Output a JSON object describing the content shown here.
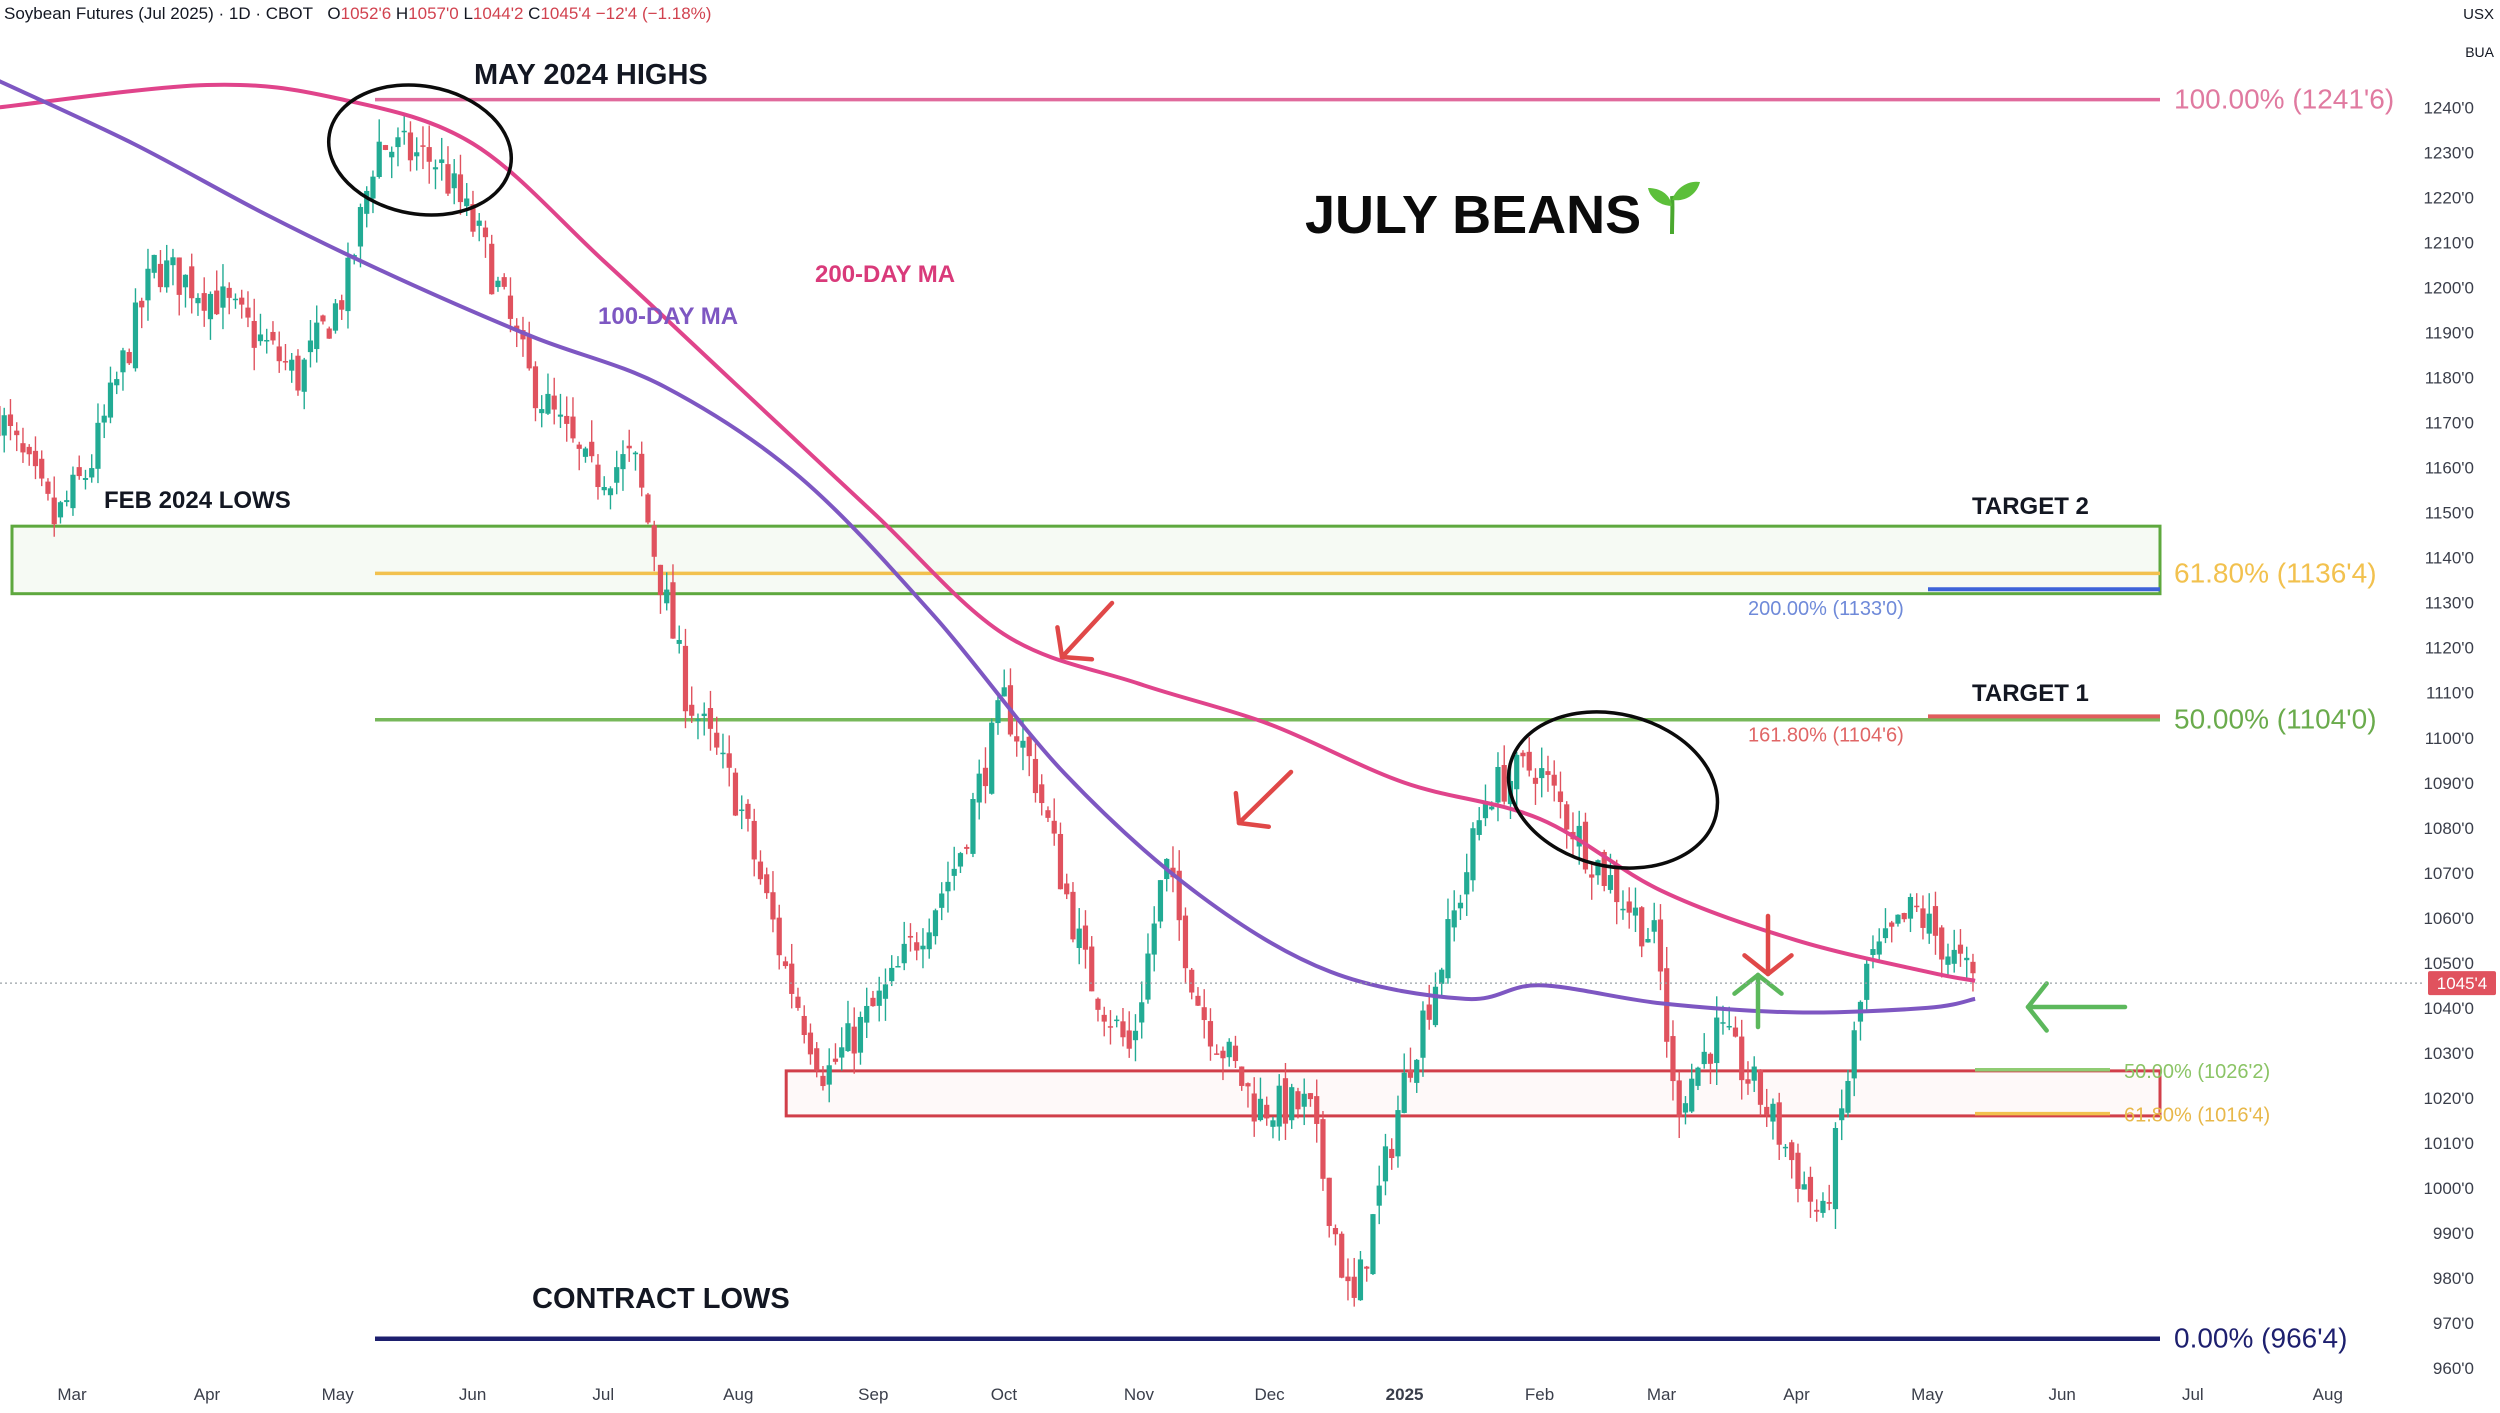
{
  "header": {
    "symbol_line": "Soybean Futures (Jul 2025) · 1D · CBOT",
    "open_label": "O",
    "open": "1052'6",
    "high_label": "H",
    "high": "1057'0",
    "low_label": "L",
    "low": "1044'2",
    "close_label": "C",
    "close": "1045'4",
    "change": "−12'4 (−1.18%)",
    "currency": "USX",
    "unit": "BUA"
  },
  "colors": {
    "up": "#22ab94",
    "down": "#e0525e",
    "ma200": "#e0448b",
    "ma100": "#7e57c2",
    "green_box": "#5ea83e",
    "red_box": "#d13f4a",
    "fib_gold": "#f2c14e",
    "navy": "#1d1f6e",
    "pink_fib": "#e07aa0"
  },
  "chart_data": {
    "type": "candlestick",
    "title": "JULY BEANS",
    "title_icon": "seedling-icon",
    "y_axis": {
      "min": 960,
      "max": 1250,
      "ticks": [
        "960'0",
        "970'0",
        "980'0",
        "990'0",
        "1000'0",
        "1010'0",
        "1020'0",
        "1030'0",
        "1040'0",
        "1050'0",
        "1060'0",
        "1070'0",
        "1080'0",
        "1090'0",
        "1100'0",
        "1110'0",
        "1120'0",
        "1130'0",
        "1140'0",
        "1150'0",
        "1160'0",
        "1170'0",
        "1180'0",
        "1190'0",
        "1200'0",
        "1210'0",
        "1220'0",
        "1230'0",
        "1240'0"
      ],
      "tick_values": [
        960,
        970,
        980,
        990,
        1000,
        1010,
        1020,
        1030,
        1040,
        1050,
        1060,
        1070,
        1080,
        1090,
        1100,
        1110,
        1120,
        1130,
        1140,
        1150,
        1160,
        1170,
        1180,
        1190,
        1200,
        1210,
        1220,
        1230,
        1240
      ],
      "position": "right"
    },
    "x_axis": {
      "months": [
        {
          "label": "Mar",
          "date": "2024-03-01"
        },
        {
          "label": "Apr",
          "date": "2024-04-01"
        },
        {
          "label": "May",
          "date": "2024-05-01"
        },
        {
          "label": "Jun",
          "date": "2024-06-01"
        },
        {
          "label": "Jul",
          "date": "2024-07-01"
        },
        {
          "label": "Aug",
          "date": "2024-08-01"
        },
        {
          "label": "Sep",
          "date": "2024-09-01"
        },
        {
          "label": "Oct",
          "date": "2024-10-01"
        },
        {
          "label": "Nov",
          "date": "2024-11-01"
        },
        {
          "label": "Dec",
          "date": "2024-12-01"
        },
        {
          "label": "2025",
          "date": "2025-01-01"
        },
        {
          "label": "Feb",
          "date": "2025-02-01"
        },
        {
          "label": "Mar",
          "date": "2025-03-01"
        },
        {
          "label": "Apr",
          "date": "2025-04-01"
        },
        {
          "label": "May",
          "date": "2025-05-01"
        },
        {
          "label": "Jun",
          "date": "2025-06-01"
        },
        {
          "label": "Jul",
          "date": "2025-07-01"
        },
        {
          "label": "Aug",
          "date": "2025-08-01"
        }
      ]
    },
    "price_path": [
      [
        "2024-02-13",
        1172
      ],
      [
        "2024-02-26",
        1148
      ],
      [
        "2024-03-05",
        1160
      ],
      [
        "2024-03-20",
        1205
      ],
      [
        "2024-04-03",
        1198
      ],
      [
        "2024-04-22",
        1180
      ],
      [
        "2024-05-03",
        1200
      ],
      [
        "2024-05-10",
        1232
      ],
      [
        "2024-05-24",
        1228
      ],
      [
        "2024-06-03",
        1210
      ],
      [
        "2024-06-14",
        1180
      ],
      [
        "2024-06-28",
        1158
      ],
      [
        "2024-07-08",
        1162
      ],
      [
        "2024-07-20",
        1110
      ],
      [
        "2024-08-01",
        1086
      ],
      [
        "2024-08-12",
        1048
      ],
      [
        "2024-08-21",
        1025
      ],
      [
        "2024-09-05",
        1045
      ],
      [
        "2024-09-20",
        1072
      ],
      [
        "2024-10-01",
        1108
      ],
      [
        "2024-10-08",
        1092
      ],
      [
        "2024-10-20",
        1048
      ],
      [
        "2024-10-30",
        1030
      ],
      [
        "2024-11-07",
        1072
      ],
      [
        "2024-11-15",
        1040
      ],
      [
        "2024-11-28",
        1018
      ],
      [
        "2024-12-10",
        1018
      ],
      [
        "2024-12-20",
        972
      ],
      [
        "2025-01-02",
        1028
      ],
      [
        "2025-01-10",
        1052
      ],
      [
        "2025-01-20",
        1088
      ],
      [
        "2025-01-31",
        1094
      ],
      [
        "2025-02-12",
        1075
      ],
      [
        "2025-02-28",
        1054
      ],
      [
        "2025-03-04",
        1018
      ],
      [
        "2025-03-14",
        1035
      ],
      [
        "2025-03-25",
        1018
      ],
      [
        "2025-04-07",
        992
      ],
      [
        "2025-04-17",
        1048
      ],
      [
        "2025-04-28",
        1062
      ],
      [
        "2025-05-12",
        1045
      ]
    ],
    "last_price": {
      "value": 1045.5,
      "label": "1045'4"
    },
    "series": [
      {
        "name": "200-DAY MA",
        "label": "200-DAY MA",
        "values": [
          [
            "2024-02-13",
            1240
          ],
          [
            "2024-04-01",
            1245
          ],
          [
            "2024-05-01",
            1242
          ],
          [
            "2024-06-01",
            1232
          ],
          [
            "2024-07-01",
            1206
          ],
          [
            "2024-08-01",
            1178
          ],
          [
            "2024-09-01",
            1150
          ],
          [
            "2024-10-01",
            1123
          ],
          [
            "2024-11-01",
            1112
          ],
          [
            "2024-12-01",
            1103
          ],
          [
            "2025-01-01",
            1090
          ],
          [
            "2025-02-01",
            1082
          ],
          [
            "2025-03-01",
            1066
          ],
          [
            "2025-04-01",
            1055
          ],
          [
            "2025-05-01",
            1048
          ],
          [
            "2025-05-12",
            1046
          ]
        ]
      },
      {
        "name": "100-DAY MA",
        "label": "100-DAY MA",
        "values": [
          [
            "2024-02-13",
            1246
          ],
          [
            "2024-03-15",
            1232
          ],
          [
            "2024-04-15",
            1216
          ],
          [
            "2024-05-15",
            1202
          ],
          [
            "2024-06-15",
            1189
          ],
          [
            "2024-07-15",
            1178
          ],
          [
            "2024-08-15",
            1158
          ],
          [
            "2024-09-15",
            1127
          ],
          [
            "2024-10-15",
            1092
          ],
          [
            "2024-11-15",
            1065
          ],
          [
            "2024-12-15",
            1048
          ],
          [
            "2025-01-15",
            1042
          ],
          [
            "2025-02-01",
            1045
          ],
          [
            "2025-03-01",
            1041
          ],
          [
            "2025-04-01",
            1039
          ],
          [
            "2025-05-01",
            1040
          ],
          [
            "2025-05-12",
            1042
          ]
        ]
      }
    ],
    "levels": [
      {
        "id": "fib-100",
        "value": 1241.75,
        "label": "100.00% (1241'6)",
        "start": "2024-05-10"
      },
      {
        "id": "fib-618",
        "value": 1136.5,
        "label": "61.80% (1136'4)",
        "start": "2024-05-10"
      },
      {
        "id": "fib-50",
        "value": 1104.0,
        "label": "50.00% (1104'0)",
        "start": "2024-05-10"
      },
      {
        "id": "fib-0",
        "value": 966.5,
        "label": "0.00% (966'4)",
        "start": "2024-05-10"
      },
      {
        "id": "ext-200",
        "value": 1133.0,
        "label": "200.00% (1133'0)"
      },
      {
        "id": "ext-1618",
        "value": 1104.75,
        "label": "161.80% (1104'6)"
      },
      {
        "id": "ret-50",
        "value": 1026.25,
        "label": "50.00% (1026'2)"
      },
      {
        "id": "ret-618",
        "value": 1016.5,
        "label": "61.80% (1016'4)"
      }
    ],
    "zones": [
      {
        "id": "resistance-zone",
        "from": 1132,
        "to": 1147,
        "start": "2024-02-13",
        "end": "2025-05-31"
      },
      {
        "id": "support-zone",
        "from": 1016,
        "to": 1026,
        "start": "2024-08-12",
        "end": "2025-05-31"
      }
    ],
    "annotations": {
      "may_highs": "MAY 2024 HIGHS",
      "feb_lows": "FEB 2024 LOWS",
      "ma200_label": "200-DAY MA",
      "ma100_label": "100-DAY MA",
      "target2": "TARGET 2",
      "target1": "TARGET 1",
      "contract_lows": "CONTRACT LOWS"
    }
  }
}
